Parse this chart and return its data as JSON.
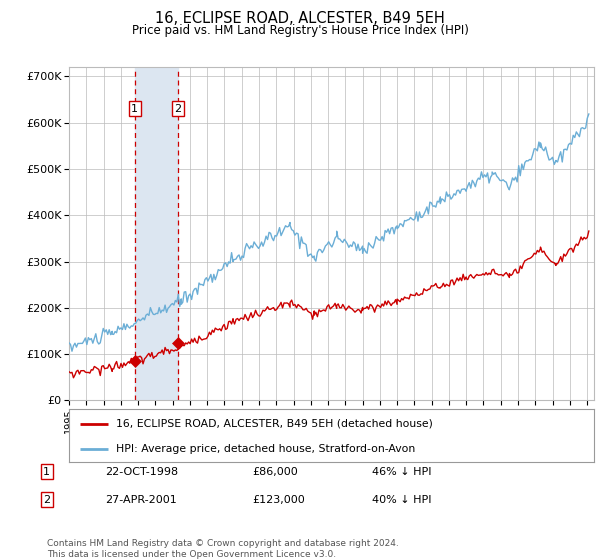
{
  "title": "16, ECLIPSE ROAD, ALCESTER, B49 5EH",
  "subtitle": "Price paid vs. HM Land Registry's House Price Index (HPI)",
  "ylim": [
    0,
    720000
  ],
  "yticks": [
    0,
    100000,
    200000,
    300000,
    400000,
    500000,
    600000,
    700000
  ],
  "ytick_labels": [
    "£0",
    "£100K",
    "£200K",
    "£300K",
    "£400K",
    "£500K",
    "£600K",
    "£700K"
  ],
  "hpi_color": "#6baed6",
  "price_color": "#cc0000",
  "sale1_year": 1998.81,
  "sale1_price": 86000,
  "sale2_year": 2001.32,
  "sale2_price": 123000,
  "shade_color": "#dce6f1",
  "vline_color": "#cc0000",
  "grid_color": "#bbbbbb",
  "background_color": "#ffffff",
  "legend_label1": "16, ECLIPSE ROAD, ALCESTER, B49 5EH (detached house)",
  "legend_label2": "HPI: Average price, detached house, Stratford-on-Avon",
  "footnote": "Contains HM Land Registry data © Crown copyright and database right 2024.\nThis data is licensed under the Open Government Licence v3.0.",
  "table_row1_date": "22-OCT-1998",
  "table_row1_price": "£86,000",
  "table_row1_hpi": "46% ↓ HPI",
  "table_row2_date": "27-APR-2001",
  "table_row2_price": "£123,000",
  "table_row2_hpi": "40% ↓ HPI"
}
